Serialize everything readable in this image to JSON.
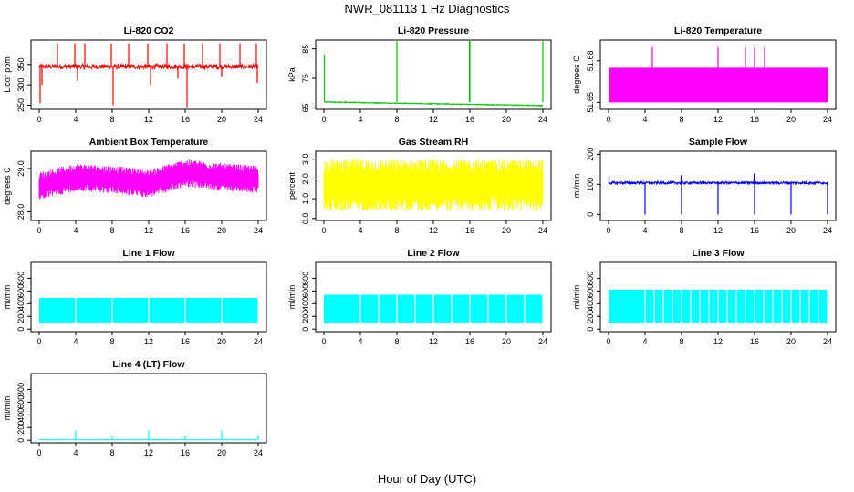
{
  "figure": {
    "title": "NWR_081113  1 Hz Diagnostics",
    "xlabel": "Hour of Day (UTC)"
  },
  "chart_data": [
    {
      "type": "line",
      "title": "Li-820 CO2",
      "ylabel": "Licor ppm",
      "color": "#ff0000",
      "xlim": [
        0,
        24
      ],
      "ylim": [
        240,
        410
      ],
      "xticks": [
        0,
        4,
        8,
        12,
        16,
        20,
        24
      ],
      "yticks": [
        250,
        300,
        350
      ],
      "series": [
        {
          "baseline": 345,
          "noise": 6,
          "spikes_up": [
            [
              2.0,
              402
            ],
            [
              3.9,
              402
            ],
            [
              5.0,
              402
            ],
            [
              7.9,
              402
            ],
            [
              9.8,
              402
            ],
            [
              11.9,
              402
            ],
            [
              14.0,
              402
            ],
            [
              15.9,
              402
            ],
            [
              17.9,
              402
            ],
            [
              19.8,
              402
            ],
            [
              22.0,
              402
            ],
            [
              23.8,
              402
            ]
          ],
          "spikes_down": [
            [
              0.1,
              255
            ],
            [
              0.3,
              300
            ],
            [
              4.2,
              310
            ],
            [
              8.1,
              250
            ],
            [
              12.2,
              300
            ],
            [
              15.2,
              315
            ],
            [
              16.2,
              245
            ],
            [
              20.0,
              320
            ],
            [
              23.9,
              305
            ]
          ]
        }
      ]
    },
    {
      "type": "line",
      "title": "Li-820 Pressure",
      "ylabel": "kPa",
      "color": "#00c000",
      "xlim": [
        0,
        24
      ],
      "ylim": [
        64.5,
        88
      ],
      "xticks": [
        0,
        4,
        8,
        12,
        16,
        20,
        24
      ],
      "yticks": [
        65,
        75,
        85
      ],
      "series": [
        {
          "start": 67.0,
          "end": 65.8,
          "noise": 0.15,
          "spikes_up": [
            [
              0.05,
              83
            ],
            [
              8.0,
              88
            ],
            [
              15.95,
              88
            ],
            [
              16.0,
              88
            ],
            [
              24.0,
              88
            ]
          ]
        }
      ]
    },
    {
      "type": "area",
      "title": "Li-820 Temperature",
      "ylabel": "degrees C",
      "color": "#ff00ff",
      "xlim": [
        0,
        24
      ],
      "ylim": [
        51.645,
        51.695
      ],
      "xticks": [
        0,
        4,
        8,
        12,
        16,
        20,
        24
      ],
      "yticks": [
        51.65,
        51.68
      ],
      "ytick_labels": [
        "51.65",
        "51.68"
      ],
      "series": [
        {
          "low": 51.65,
          "high": 51.675,
          "spikes_up": [
            [
              4.8,
              51.69
            ],
            [
              12.0,
              51.69
            ],
            [
              15.0,
              51.69
            ],
            [
              16.0,
              51.69
            ],
            [
              17.1,
              51.69
            ]
          ]
        }
      ]
    },
    {
      "type": "area",
      "title": "Ambient Box Temperature",
      "ylabel": "degrees C",
      "color": "#ff00ff",
      "xlim": [
        0,
        24
      ],
      "ylim": [
        27.8,
        29.4
      ],
      "xticks": [
        0,
        4,
        8,
        12,
        16,
        20,
        24
      ],
      "yticks": [
        28.0,
        29.0
      ],
      "ytick_labels": [
        "28.0",
        "29.0"
      ],
      "series": [
        {
          "center": [
            [
              0,
              28.6
            ],
            [
              4,
              28.8
            ],
            [
              8,
              28.75
            ],
            [
              12,
              28.65
            ],
            [
              16,
              28.9
            ],
            [
              20,
              28.8
            ],
            [
              24,
              28.75
            ]
          ],
          "spread": 0.32
        }
      ]
    },
    {
      "type": "area",
      "title": "Gas Stream RH",
      "ylabel": "percent",
      "color": "#ffff00",
      "xlim": [
        0,
        24
      ],
      "ylim": [
        -0.1,
        3.4
      ],
      "xticks": [
        0,
        4,
        8,
        12,
        16,
        20,
        24
      ],
      "yticks": [
        0.0,
        1.0,
        2.0,
        3.0
      ],
      "ytick_labels": [
        "0.0",
        "1.0",
        "2.0",
        "3.0"
      ],
      "series": [
        {
          "center": 1.7,
          "spread": 1.3
        }
      ]
    },
    {
      "type": "line",
      "title": "Sample Flow",
      "ylabel": "ml/min",
      "color": "#0000ff",
      "xlim": [
        0,
        24
      ],
      "ylim": [
        -20,
        210
      ],
      "xticks": [
        0,
        4,
        8,
        12,
        16,
        20,
        24
      ],
      "yticks": [
        0,
        100,
        200
      ],
      "series": [
        {
          "baseline": 105,
          "noise": 4,
          "spikes_up": [
            [
              0.05,
              130
            ],
            [
              7.95,
              130
            ],
            [
              15.95,
              135
            ]
          ],
          "spikes_down": [
            [
              4.0,
              0
            ],
            [
              8.0,
              0
            ],
            [
              12.0,
              0
            ],
            [
              16.0,
              0
            ],
            [
              20.0,
              0
            ],
            [
              24.0,
              0
            ]
          ]
        }
      ]
    },
    {
      "type": "area",
      "title": "Line 1 Flow",
      "ylabel": "ml/min",
      "color": "#00ffff",
      "xlim": [
        0,
        24
      ],
      "ylim": [
        -40,
        1050
      ],
      "xticks": [
        0,
        4,
        8,
        12,
        16,
        20,
        24
      ],
      "yticks": [
        0,
        200,
        400,
        600,
        800
      ],
      "series": [
        {
          "low": 90,
          "high": 490,
          "gaps": [
            4.0,
            8.0,
            12.0,
            16.0,
            20.0,
            24.0
          ]
        }
      ]
    },
    {
      "type": "area",
      "title": "Line 2 Flow",
      "ylabel": "ml/min",
      "color": "#00ffff",
      "xlim": [
        0,
        24
      ],
      "ylim": [
        -40,
        1050
      ],
      "xticks": [
        0,
        4,
        8,
        12,
        16,
        20,
        24
      ],
      "yticks": [
        0,
        200,
        400,
        600,
        800
      ],
      "series": [
        {
          "low": 90,
          "high": 540,
          "gaps": [
            4.0,
            6.0,
            8.0,
            10.0,
            12.0,
            14.0,
            16.0,
            18.0,
            20.0,
            22.0,
            24.0
          ]
        }
      ]
    },
    {
      "type": "area",
      "title": "Line 3 Flow",
      "ylabel": "ml/min",
      "color": "#00ffff",
      "xlim": [
        0,
        24
      ],
      "ylim": [
        -40,
        1050
      ],
      "xticks": [
        0,
        4,
        8,
        12,
        16,
        20,
        24
      ],
      "yticks": [
        0,
        200,
        400,
        600,
        800
      ],
      "series": [
        {
          "low": 90,
          "high": 620,
          "gaps": [
            4.0,
            5.0,
            6.0,
            7.0,
            8.0,
            9.0,
            10.0,
            11.0,
            12.0,
            13.0,
            14.0,
            15.0,
            16.0,
            17.0,
            18.0,
            19.0,
            20.0,
            21.0,
            22.0,
            23.0,
            24.0
          ]
        }
      ]
    },
    {
      "type": "line",
      "title": "Line 4 (LT) Flow",
      "ylabel": "ml/min",
      "color": "#00ffff",
      "xlim": [
        0,
        24
      ],
      "ylim": [
        -40,
        1050
      ],
      "xticks": [
        0,
        4,
        8,
        12,
        16,
        20,
        24
      ],
      "yticks": [
        0,
        200,
        400,
        600,
        800
      ],
      "series": [
        {
          "baseline": 8,
          "noise": 3,
          "spikes_up": [
            [
              4.0,
              150
            ],
            [
              8.0,
              70
            ],
            [
              12.0,
              155
            ],
            [
              16.0,
              75
            ],
            [
              20.0,
              150
            ],
            [
              24.0,
              80
            ]
          ]
        }
      ]
    }
  ]
}
